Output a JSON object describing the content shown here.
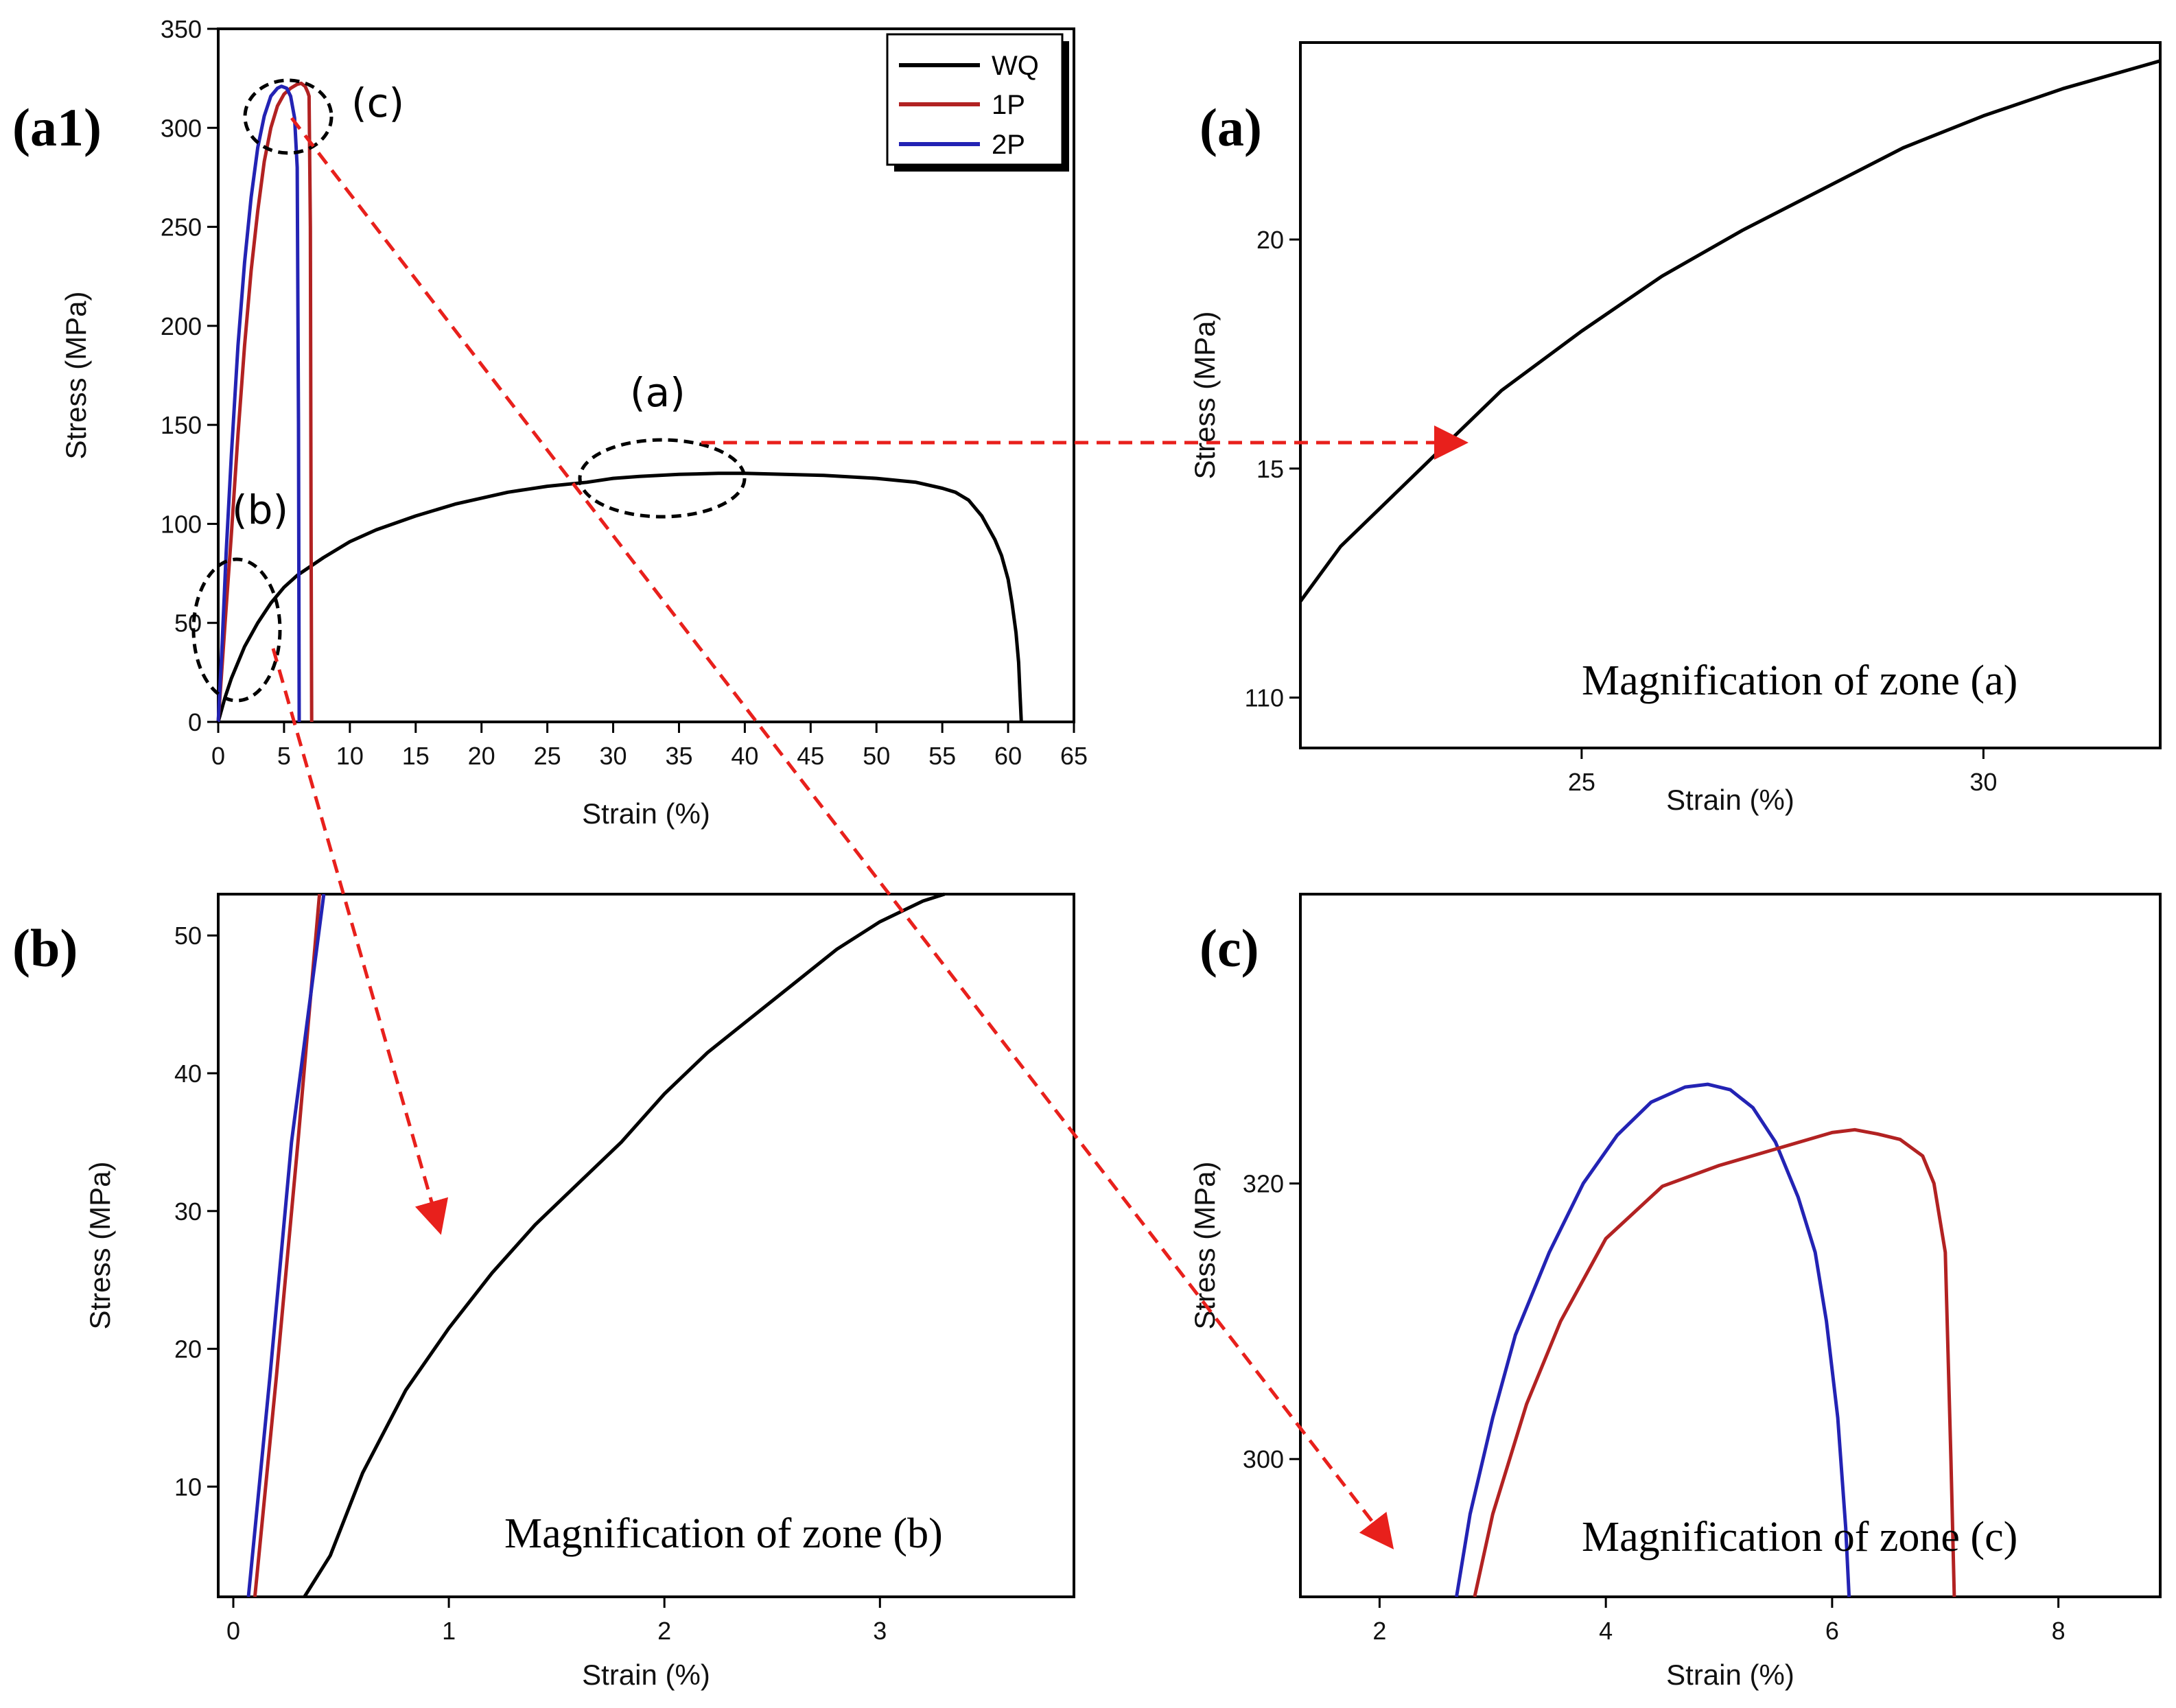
{
  "figure": {
    "colors": {
      "WQ": "#000000",
      "1P": "#b22222",
      "2P": "#2323b4",
      "arrow": "#e8201c",
      "frame": "#000000"
    },
    "zone_labels": [
      "(a)",
      "(b)",
      "(c)"
    ],
    "magnification_labels": {
      "a": "Magnification  of zone (a)",
      "b": "Magnification  of zone (b)",
      "c": "Magnification  of zone (c)"
    }
  },
  "chart_data": [
    {
      "id": "a1",
      "panel_label": "(a1)",
      "type": "line",
      "xlabel": "Strain (%)",
      "ylabel": "Stress (MPa)",
      "xlim": [
        0,
        65
      ],
      "ylim": [
        0,
        350
      ],
      "xticks": [
        "0",
        "5",
        "10",
        "15",
        "20",
        "25",
        "30",
        "35",
        "40",
        "45",
        "50",
        "55",
        "60",
        "65"
      ],
      "yticks": [
        "0",
        "50",
        "100",
        "150",
        "200",
        "250",
        "300",
        "350"
      ],
      "legend": [
        "WQ",
        "1P",
        "2P"
      ],
      "series": [
        {
          "name": "WQ",
          "x": [
            0,
            0.5,
            1,
            2,
            3,
            4,
            5,
            6,
            8,
            10,
            12,
            15,
            18,
            20,
            22,
            25,
            28,
            30,
            32,
            35,
            38,
            40,
            43,
            46,
            50,
            53,
            55,
            56,
            57,
            58,
            59,
            59.5,
            60,
            60.3,
            60.6,
            60.8,
            60.9,
            61
          ],
          "y": [
            0,
            12,
            22,
            38,
            50,
            60,
            68,
            74,
            83,
            91,
            97,
            104,
            110,
            113,
            116,
            119,
            121,
            123,
            124,
            125,
            125.5,
            125.5,
            125,
            124.5,
            123,
            121,
            118,
            116,
            112,
            104,
            92,
            84,
            72,
            60,
            45,
            30,
            15,
            0
          ]
        },
        {
          "name": "1P",
          "x": [
            0,
            0.5,
            1,
            1.5,
            2,
            2.5,
            3,
            3.5,
            4,
            4.5,
            5,
            5.5,
            6,
            6.3,
            6.6,
            6.8,
            6.9,
            7,
            7.05,
            7.1
          ],
          "y": [
            0,
            48,
            95,
            145,
            190,
            228,
            258,
            283,
            300,
            311,
            317,
            320,
            322,
            322.5,
            321,
            318,
            316,
            250,
            100,
            0
          ]
        },
        {
          "name": "2P",
          "x": [
            0,
            0.3,
            0.6,
            1,
            1.5,
            2,
            2.5,
            3,
            3.5,
            4,
            4.5,
            4.8,
            5.2,
            5.5,
            5.8,
            6,
            6.1,
            6.15
          ],
          "y": [
            0,
            40,
            85,
            135,
            190,
            232,
            265,
            290,
            306,
            316,
            320,
            321,
            320,
            316,
            305,
            280,
            150,
            0
          ]
        }
      ]
    },
    {
      "id": "a",
      "panel_label": "(a)",
      "type": "line",
      "xlabel": "Strain (%)",
      "ylabel": "Stress (MPa)",
      "xlim": [
        21.5,
        32.2
      ],
      "ylim": [
        108.9,
        124.3
      ],
      "xticks": [
        "25",
        "30"
      ],
      "yticks": [
        "110",
        "15",
        "20"
      ],
      "series": [
        {
          "name": "WQ",
          "x": [
            21.5,
            22,
            23,
            24,
            25,
            26,
            27,
            28,
            29,
            30,
            31,
            32,
            32.2
          ],
          "y": [
            112.1,
            113.3,
            115.0,
            116.7,
            118.0,
            119.2,
            120.2,
            121.1,
            122.0,
            122.7,
            123.3,
            123.8,
            123.9
          ]
        }
      ],
      "caption": "Magnification  of zone (a)"
    },
    {
      "id": "b",
      "panel_label": "(b)",
      "type": "line",
      "xlabel": "Strain (%)",
      "ylabel": "Stress (MPa)",
      "xlim": [
        -0.07,
        3.9
      ],
      "ylim": [
        2,
        53
      ],
      "xticks": [
        "0",
        "1",
        "2",
        "3"
      ],
      "yticks": [
        "10",
        "20",
        "30",
        "40",
        "50"
      ],
      "series": [
        {
          "name": "WQ",
          "x": [
            0.33,
            0.45,
            0.6,
            0.8,
            1,
            1.2,
            1.4,
            1.6,
            1.8,
            2,
            2.2,
            2.4,
            2.6,
            2.8,
            3,
            3.2,
            3.3
          ],
          "y": [
            2,
            5,
            11,
            17,
            21.5,
            25.5,
            29,
            32,
            35,
            38.5,
            41.5,
            44,
            46.5,
            49,
            51,
            52.5,
            53
          ]
        },
        {
          "name": "1P",
          "x": [
            0.1,
            0.2,
            0.3,
            0.4
          ],
          "y": [
            2,
            18,
            35,
            53
          ]
        },
        {
          "name": "2P",
          "x": [
            0.07,
            0.17,
            0.27,
            0.42
          ],
          "y": [
            2,
            18,
            35,
            53
          ]
        }
      ],
      "caption": "Magnification  of zone (b)"
    },
    {
      "id": "c",
      "panel_label": "(c)",
      "type": "line",
      "xlabel": "Strain (%)",
      "ylabel": "Stress (MPa)",
      "xlim": [
        1.3,
        8.9
      ],
      "ylim": [
        290,
        341
      ],
      "xticks": [
        "2",
        "4",
        "6",
        "8"
      ],
      "yticks": [
        "300",
        "320"
      ],
      "series": [
        {
          "name": "2P",
          "x": [
            2.68,
            2.8,
            3,
            3.2,
            3.5,
            3.8,
            4.1,
            4.4,
            4.7,
            4.9,
            5.1,
            5.3,
            5.5,
            5.7,
            5.85,
            5.95,
            6.05,
            6.12,
            6.15
          ],
          "y": [
            290,
            296,
            303,
            309,
            315,
            320,
            323.5,
            325.9,
            327,
            327.2,
            326.8,
            325.5,
            323,
            319,
            315,
            310,
            303,
            295,
            290
          ]
        },
        {
          "name": "1P",
          "x": [
            2.84,
            3,
            3.3,
            3.6,
            4,
            4.5,
            5,
            5.5,
            6,
            6.2,
            6.4,
            6.6,
            6.8,
            6.9,
            7,
            7.05,
            7.08
          ],
          "y": [
            290,
            296,
            304,
            310,
            316,
            319.8,
            321.3,
            322.5,
            323.7,
            323.9,
            323.6,
            323.2,
            322,
            320,
            315,
            300,
            290
          ]
        }
      ],
      "caption": "Magnification  of zone (c)"
    }
  ]
}
